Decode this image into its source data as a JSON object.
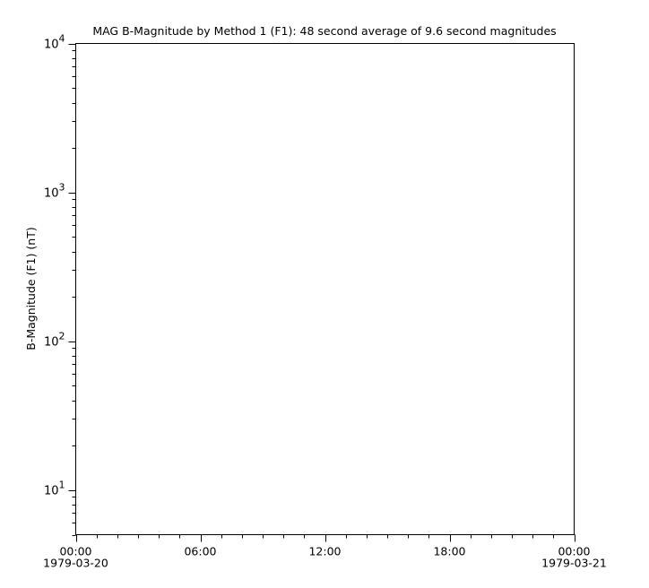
{
  "chart_data": {
    "type": "line",
    "title": "MAG  B-Magnitude by Method 1 (F1): 48 second average of 9.6 second magnitudes",
    "xlabel": "",
    "ylabel": "B-Magnitude (F1) (nT)",
    "yscale": "log",
    "ylim": [
      5,
      10000
    ],
    "xlim": [
      "1979-03-20T00:00",
      "1979-03-21T00:00"
    ],
    "y_ticks": [
      {
        "value": 10,
        "base": "10",
        "exp": "1"
      },
      {
        "value": 100,
        "base": "10",
        "exp": "2"
      },
      {
        "value": 1000,
        "base": "10",
        "exp": "3"
      },
      {
        "value": 10000,
        "base": "10",
        "exp": "4"
      }
    ],
    "x_ticks": [
      {
        "hour": 0,
        "label": "00:00",
        "date": "1979-03-20"
      },
      {
        "hour": 6,
        "label": "06:00",
        "date": ""
      },
      {
        "hour": 12,
        "label": "12:00",
        "date": ""
      },
      {
        "hour": 18,
        "label": "18:00",
        "date": ""
      },
      {
        "hour": 24,
        "label": "00:00",
        "date": "1979-03-21"
      }
    ],
    "x_minor_tick_interval_hours": 1,
    "grid": false,
    "series": []
  }
}
